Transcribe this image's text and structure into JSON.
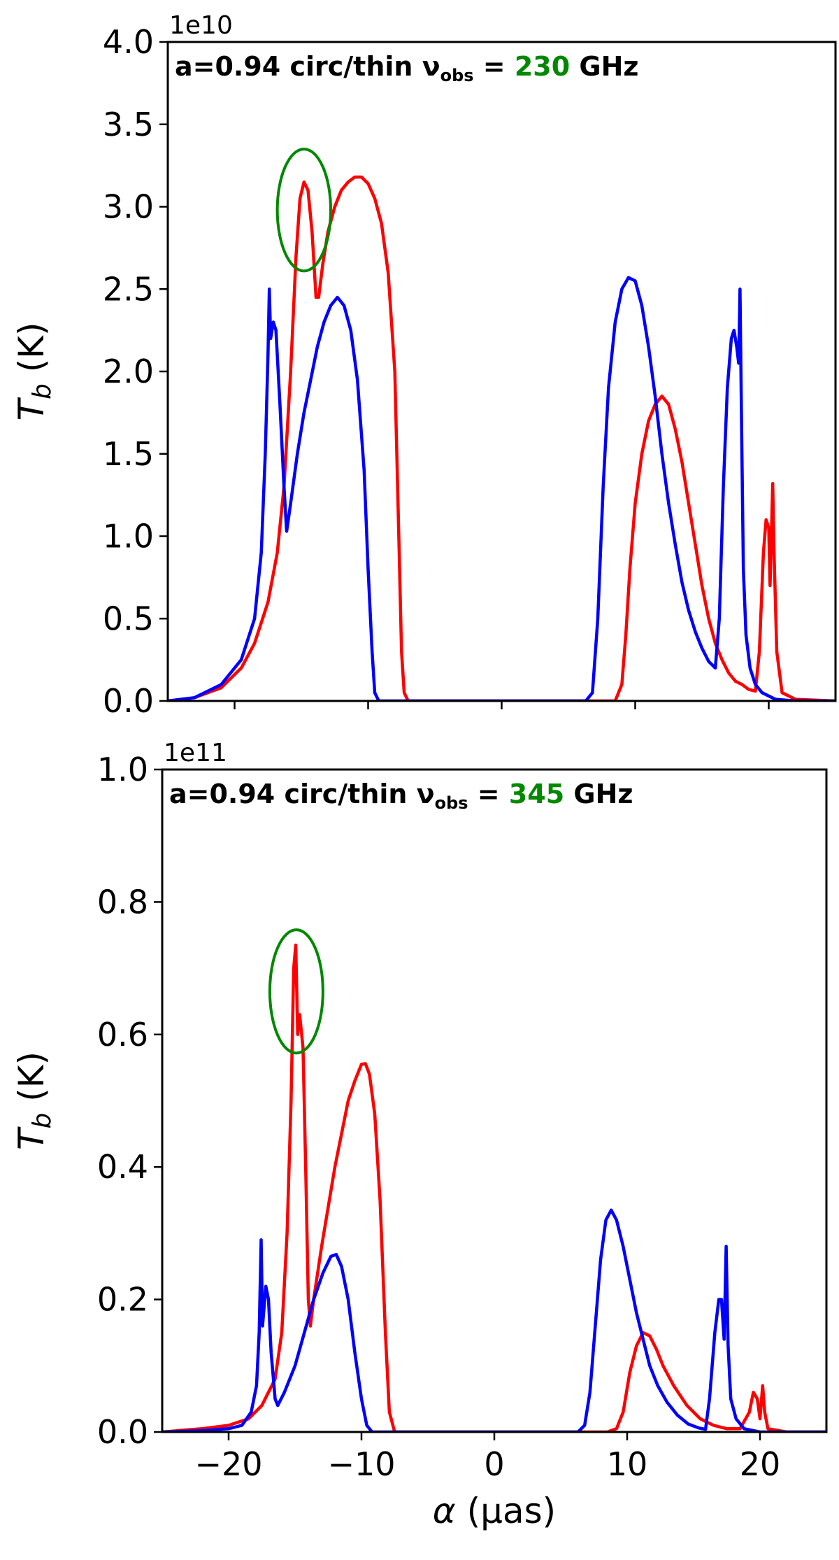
{
  "chart_data": [
    {
      "type": "line",
      "annotation": {
        "prefix": "a=0.94 circ/thin ",
        "nu": "ν",
        "sub": "obs",
        "eq": " = ",
        "freq": "230",
        "unit": " GHz",
        "freq_color": "#008800"
      },
      "xlabel": "",
      "ylabel_main": "T",
      "ylabel_sub": "b",
      "ylabel_unit": " (K)",
      "y_offset_label": "1e10",
      "xlim": [
        -25,
        25
      ],
      "ylim": [
        0,
        4.0
      ],
      "xticks": [
        -20,
        -10,
        0,
        10,
        20
      ],
      "xtick_labels_visible": false,
      "yticks": [
        0.0,
        0.5,
        1.0,
        1.5,
        2.0,
        2.5,
        3.0,
        3.5,
        4.0
      ],
      "ytick_labels": [
        "0.0",
        "0.5",
        "1.0",
        "1.5",
        "2.0",
        "2.5",
        "3.0",
        "3.5",
        "4.0"
      ],
      "circle": {
        "x": -14.8,
        "y": 2.98,
        "rx": 2.0,
        "ry": 0.37,
        "color": "#008800"
      },
      "series": [
        {
          "color": "#ff0000",
          "points": [
            [
              -25,
              0
            ],
            [
              -23,
              0.02
            ],
            [
              -21,
              0.08
            ],
            [
              -19.5,
              0.2
            ],
            [
              -18.5,
              0.35
            ],
            [
              -17.5,
              0.6
            ],
            [
              -16.8,
              0.9
            ],
            [
              -16.3,
              1.3
            ],
            [
              -15.8,
              2.0
            ],
            [
              -15.4,
              2.7
            ],
            [
              -15.1,
              3.05
            ],
            [
              -14.8,
              3.15
            ],
            [
              -14.5,
              3.1
            ],
            [
              -14.2,
              2.85
            ],
            [
              -13.9,
              2.45
            ],
            [
              -13.7,
              2.45
            ],
            [
              -13.4,
              2.65
            ],
            [
              -13.0,
              2.85
            ],
            [
              -12.5,
              3.0
            ],
            [
              -12.0,
              3.1
            ],
            [
              -11.5,
              3.15
            ],
            [
              -11.0,
              3.18
            ],
            [
              -10.5,
              3.18
            ],
            [
              -10.0,
              3.14
            ],
            [
              -9.5,
              3.05
            ],
            [
              -9.0,
              2.9
            ],
            [
              -8.5,
              2.6
            ],
            [
              -8.0,
              2.0
            ],
            [
              -7.7,
              1.0
            ],
            [
              -7.5,
              0.3
            ],
            [
              -7.3,
              0.05
            ],
            [
              -7.0,
              0
            ],
            [
              8.5,
              0
            ],
            [
              9.0,
              0.1
            ],
            [
              9.3,
              0.4
            ],
            [
              9.6,
              0.8
            ],
            [
              10.0,
              1.2
            ],
            [
              10.5,
              1.5
            ],
            [
              11.0,
              1.7
            ],
            [
              11.5,
              1.8
            ],
            [
              12.0,
              1.85
            ],
            [
              12.5,
              1.8
            ],
            [
              13.0,
              1.65
            ],
            [
              13.5,
              1.45
            ],
            [
              14.0,
              1.2
            ],
            [
              14.5,
              0.95
            ],
            [
              15.0,
              0.7
            ],
            [
              15.5,
              0.5
            ],
            [
              16.0,
              0.35
            ],
            [
              16.5,
              0.25
            ],
            [
              17.0,
              0.17
            ],
            [
              17.5,
              0.12
            ],
            [
              18.0,
              0.1
            ],
            [
              18.5,
              0.07
            ],
            [
              19.0,
              0.06
            ],
            [
              19.3,
              0.3
            ],
            [
              19.6,
              0.9
            ],
            [
              19.8,
              1.1
            ],
            [
              20.0,
              1.05
            ],
            [
              20.1,
              0.7
            ],
            [
              20.2,
              1.0
            ],
            [
              20.3,
              1.32
            ],
            [
              20.4,
              0.9
            ],
            [
              20.6,
              0.3
            ],
            [
              21.0,
              0.05
            ],
            [
              22,
              0.01
            ],
            [
              25,
              0
            ]
          ]
        },
        {
          "color": "#0000ff",
          "points": [
            [
              -25,
              0
            ],
            [
              -23,
              0.02
            ],
            [
              -21,
              0.1
            ],
            [
              -19.5,
              0.25
            ],
            [
              -18.5,
              0.5
            ],
            [
              -18.0,
              0.9
            ],
            [
              -17.7,
              1.5
            ],
            [
              -17.5,
              2.1
            ],
            [
              -17.4,
              2.5
            ],
            [
              -17.3,
              2.2
            ],
            [
              -17.1,
              2.3
            ],
            [
              -16.9,
              2.25
            ],
            [
              -16.6,
              1.8
            ],
            [
              -16.3,
              1.3
            ],
            [
              -16.1,
              1.03
            ],
            [
              -15.8,
              1.2
            ],
            [
              -15.3,
              1.5
            ],
            [
              -14.8,
              1.75
            ],
            [
              -14.3,
              1.95
            ],
            [
              -13.8,
              2.15
            ],
            [
              -13.3,
              2.3
            ],
            [
              -12.8,
              2.4
            ],
            [
              -12.3,
              2.45
            ],
            [
              -11.8,
              2.4
            ],
            [
              -11.3,
              2.25
            ],
            [
              -10.8,
              1.95
            ],
            [
              -10.3,
              1.4
            ],
            [
              -10.0,
              0.8
            ],
            [
              -9.7,
              0.3
            ],
            [
              -9.5,
              0.05
            ],
            [
              -9.2,
              0
            ],
            [
              6.3,
              0
            ],
            [
              6.8,
              0.05
            ],
            [
              7.2,
              0.5
            ],
            [
              7.6,
              1.3
            ],
            [
              8.0,
              1.9
            ],
            [
              8.5,
              2.3
            ],
            [
              9.0,
              2.5
            ],
            [
              9.5,
              2.57
            ],
            [
              10.0,
              2.55
            ],
            [
              10.5,
              2.4
            ],
            [
              11.0,
              2.15
            ],
            [
              11.5,
              1.85
            ],
            [
              12.0,
              1.5
            ],
            [
              12.5,
              1.2
            ],
            [
              13.0,
              0.95
            ],
            [
              13.5,
              0.72
            ],
            [
              14.0,
              0.55
            ],
            [
              14.5,
              0.42
            ],
            [
              15.0,
              0.32
            ],
            [
              15.5,
              0.24
            ],
            [
              16.0,
              0.2
            ],
            [
              16.3,
              0.5
            ],
            [
              16.6,
              1.3
            ],
            [
              16.9,
              1.9
            ],
            [
              17.2,
              2.2
            ],
            [
              17.4,
              2.25
            ],
            [
              17.6,
              2.15
            ],
            [
              17.75,
              2.05
            ],
            [
              17.85,
              2.5
            ],
            [
              17.95,
              1.8
            ],
            [
              18.1,
              0.8
            ],
            [
              18.3,
              0.4
            ],
            [
              18.6,
              0.2
            ],
            [
              19.0,
              0.1
            ],
            [
              19.5,
              0.05
            ],
            [
              20.5,
              0.01
            ],
            [
              22,
              0
            ],
            [
              25,
              0
            ]
          ]
        }
      ]
    },
    {
      "type": "line",
      "annotation": {
        "prefix": "a=0.94 circ/thin ",
        "nu": "ν",
        "sub": "obs",
        "eq": " = ",
        "freq": "345",
        "unit": " GHz",
        "freq_color": "#008800"
      },
      "xlabel_main": "α",
      "xlabel_unit": " (μas)",
      "ylabel_main": "T",
      "ylabel_sub": "b",
      "ylabel_unit": " (K)",
      "y_offset_label": "1e11",
      "xlim": [
        -25,
        25
      ],
      "ylim": [
        0,
        1.0
      ],
      "xticks": [
        -20,
        -10,
        0,
        10,
        20
      ],
      "xtick_labels": [
        "−20",
        "−10",
        "0",
        "10",
        "20"
      ],
      "yticks": [
        0.0,
        0.2,
        0.4,
        0.6,
        0.8,
        1.0
      ],
      "ytick_labels": [
        "0.0",
        "0.2",
        "0.4",
        "0.6",
        "0.8",
        "1.0"
      ],
      "circle": {
        "x": -14.9,
        "y": 0.665,
        "rx": 2.0,
        "ry": 0.093,
        "color": "#008800"
      },
      "series": [
        {
          "color": "#ff0000",
          "points": [
            [
              -25,
              0
            ],
            [
              -22,
              0.005
            ],
            [
              -20,
              0.01
            ],
            [
              -18.5,
              0.02
            ],
            [
              -17.5,
              0.04
            ],
            [
              -16.5,
              0.08
            ],
            [
              -16.0,
              0.15
            ],
            [
              -15.6,
              0.3
            ],
            [
              -15.3,
              0.5
            ],
            [
              -15.1,
              0.7
            ],
            [
              -14.95,
              0.735
            ],
            [
              -14.8,
              0.6
            ],
            [
              -14.65,
              0.63
            ],
            [
              -14.4,
              0.58
            ],
            [
              -14.2,
              0.4
            ],
            [
              -14.0,
              0.2
            ],
            [
              -13.85,
              0.16
            ],
            [
              -13.6,
              0.2
            ],
            [
              -13.0,
              0.28
            ],
            [
              -12.5,
              0.34
            ],
            [
              -12.0,
              0.4
            ],
            [
              -11.5,
              0.45
            ],
            [
              -11.0,
              0.5
            ],
            [
              -10.5,
              0.53
            ],
            [
              -10.0,
              0.555
            ],
            [
              -9.7,
              0.556
            ],
            [
              -9.4,
              0.54
            ],
            [
              -9.0,
              0.48
            ],
            [
              -8.6,
              0.35
            ],
            [
              -8.2,
              0.15
            ],
            [
              -7.9,
              0.03
            ],
            [
              -7.5,
              0
            ],
            [
              8.5,
              0
            ],
            [
              9.2,
              0.005
            ],
            [
              9.7,
              0.03
            ],
            [
              10.2,
              0.09
            ],
            [
              10.7,
              0.13
            ],
            [
              11.2,
              0.15
            ],
            [
              11.7,
              0.145
            ],
            [
              12.2,
              0.125
            ],
            [
              12.7,
              0.1
            ],
            [
              13.5,
              0.07
            ],
            [
              14.5,
              0.04
            ],
            [
              15.5,
              0.02
            ],
            [
              16.5,
              0.01
            ],
            [
              17.5,
              0.005
            ],
            [
              18.5,
              0.005
            ],
            [
              19.2,
              0.03
            ],
            [
              19.5,
              0.06
            ],
            [
              19.8,
              0.05
            ],
            [
              20.0,
              0.02
            ],
            [
              20.2,
              0.07
            ],
            [
              20.35,
              0.03
            ],
            [
              20.6,
              0.005
            ],
            [
              22,
              0
            ],
            [
              25,
              0
            ]
          ]
        },
        {
          "color": "#0000ff",
          "points": [
            [
              -25,
              0
            ],
            [
              -22,
              0.002
            ],
            [
              -20,
              0.005
            ],
            [
              -19,
              0.01
            ],
            [
              -18.3,
              0.03
            ],
            [
              -17.9,
              0.07
            ],
            [
              -17.7,
              0.15
            ],
            [
              -17.55,
              0.29
            ],
            [
              -17.45,
              0.16
            ],
            [
              -17.2,
              0.22
            ],
            [
              -17.0,
              0.2
            ],
            [
              -16.8,
              0.12
            ],
            [
              -16.5,
              0.05
            ],
            [
              -16.3,
              0.04
            ],
            [
              -15.8,
              0.06
            ],
            [
              -15.0,
              0.1
            ],
            [
              -14.3,
              0.15
            ],
            [
              -13.6,
              0.2
            ],
            [
              -12.9,
              0.24
            ],
            [
              -12.3,
              0.265
            ],
            [
              -11.9,
              0.268
            ],
            [
              -11.5,
              0.25
            ],
            [
              -11.0,
              0.2
            ],
            [
              -10.5,
              0.12
            ],
            [
              -10.0,
              0.05
            ],
            [
              -9.6,
              0.01
            ],
            [
              -9.2,
              0
            ],
            [
              6.3,
              0
            ],
            [
              6.8,
              0.01
            ],
            [
              7.2,
              0.06
            ],
            [
              7.6,
              0.16
            ],
            [
              8.0,
              0.26
            ],
            [
              8.4,
              0.32
            ],
            [
              8.8,
              0.335
            ],
            [
              9.2,
              0.32
            ],
            [
              9.7,
              0.28
            ],
            [
              10.2,
              0.23
            ],
            [
              10.7,
              0.18
            ],
            [
              11.2,
              0.14
            ],
            [
              11.7,
              0.1
            ],
            [
              12.3,
              0.07
            ],
            [
              13.0,
              0.045
            ],
            [
              13.8,
              0.025
            ],
            [
              14.6,
              0.012
            ],
            [
              15.4,
              0.006
            ],
            [
              15.9,
              0.004
            ],
            [
              16.2,
              0.05
            ],
            [
              16.6,
              0.15
            ],
            [
              16.9,
              0.2
            ],
            [
              17.1,
              0.2
            ],
            [
              17.3,
              0.14
            ],
            [
              17.45,
              0.28
            ],
            [
              17.6,
              0.13
            ],
            [
              17.8,
              0.05
            ],
            [
              18.2,
              0.02
            ],
            [
              18.8,
              0.005
            ],
            [
              20,
              0
            ],
            [
              25,
              0
            ]
          ]
        }
      ]
    }
  ]
}
